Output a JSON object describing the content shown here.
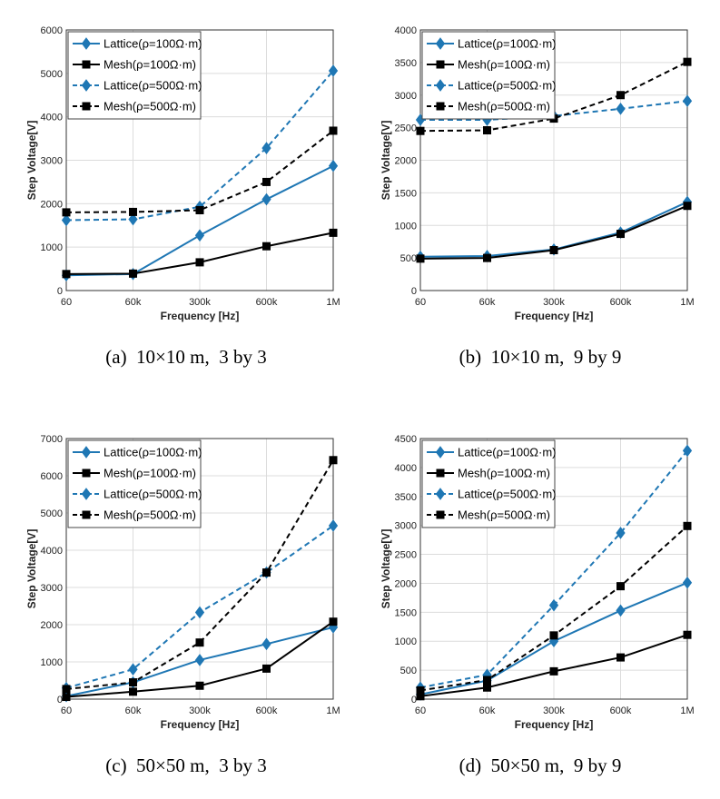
{
  "colors": {
    "lattice": "#1f77b4",
    "mesh": "#000000",
    "grid": "#dcdcdc"
  },
  "chart_data": [
    {
      "type": "line",
      "caption": "(a)  10×10 m,  3 by 3",
      "xlabel": "Frequency [Hz]",
      "ylabel": "Step Voltage[V]",
      "categories": [
        "60",
        "60k",
        "300k",
        "600k",
        "1M"
      ],
      "ylim": [
        0,
        6000
      ],
      "yticks": [
        0,
        1000,
        2000,
        3000,
        4000,
        5000,
        6000
      ],
      "grid": true,
      "legend_position": "top-left",
      "series": [
        {
          "name": "Lattice(ρ=100Ω·m)",
          "style": "solid",
          "marker": "diamond",
          "color": "#1f77b4",
          "values": [
            350,
            380,
            1270,
            2100,
            2870
          ]
        },
        {
          "name": "Mesh(ρ=100Ω·m)",
          "style": "solid",
          "marker": "square",
          "color": "#000000",
          "values": [
            380,
            390,
            650,
            1020,
            1330
          ]
        },
        {
          "name": "Lattice(ρ=500Ω·m)",
          "style": "dashed",
          "marker": "diamond",
          "color": "#1f77b4",
          "values": [
            1620,
            1640,
            1930,
            3280,
            5060
          ]
        },
        {
          "name": "Mesh(ρ=500Ω·m)",
          "style": "dashed",
          "marker": "square",
          "color": "#000000",
          "values": [
            1800,
            1810,
            1850,
            2500,
            3680
          ]
        }
      ]
    },
    {
      "type": "line",
      "caption": "(b)  10×10 m,  9 by 9",
      "xlabel": "Frequency [Hz]",
      "ylabel": "Step Voltage[V]",
      "categories": [
        "60",
        "60k",
        "300k",
        "600k",
        "1M"
      ],
      "ylim": [
        0,
        4000
      ],
      "yticks": [
        0,
        500,
        1000,
        1500,
        2000,
        2500,
        3000,
        3500,
        4000
      ],
      "grid": true,
      "legend_position": "top-left",
      "series": [
        {
          "name": "Lattice(ρ=100Ω·m)",
          "style": "solid",
          "marker": "diamond",
          "color": "#1f77b4",
          "values": [
            520,
            530,
            630,
            890,
            1360
          ]
        },
        {
          "name": "Mesh(ρ=100Ω·m)",
          "style": "solid",
          "marker": "square",
          "color": "#000000",
          "values": [
            490,
            500,
            620,
            870,
            1300
          ]
        },
        {
          "name": "Lattice(ρ=500Ω·m)",
          "style": "dashed",
          "marker": "diamond",
          "color": "#1f77b4",
          "values": [
            2620,
            2620,
            2680,
            2790,
            2910
          ]
        },
        {
          "name": "Mesh(ρ=500Ω·m)",
          "style": "dashed",
          "marker": "square",
          "color": "#000000",
          "values": [
            2450,
            2460,
            2640,
            3000,
            3510
          ]
        }
      ]
    },
    {
      "type": "line",
      "caption": "(c)  50×50 m,  3 by 3",
      "xlabel": "Frequency [Hz]",
      "ylabel": "Step Voltage[V]",
      "categories": [
        "60",
        "60k",
        "300k",
        "600k",
        "1M"
      ],
      "ylim": [
        0,
        7000
      ],
      "yticks": [
        0,
        1000,
        2000,
        3000,
        4000,
        5000,
        6000,
        7000
      ],
      "grid": true,
      "legend_position": "top-left",
      "series": [
        {
          "name": "Lattice(ρ=100Ω·m)",
          "style": "solid",
          "marker": "diamond",
          "color": "#1f77b4",
          "values": [
            80,
            450,
            1050,
            1480,
            1930
          ]
        },
        {
          "name": "Mesh(ρ=100Ω·m)",
          "style": "solid",
          "marker": "square",
          "color": "#000000",
          "values": [
            60,
            200,
            360,
            820,
            2080
          ]
        },
        {
          "name": "Lattice(ρ=500Ω·m)",
          "style": "dashed",
          "marker": "diamond",
          "color": "#1f77b4",
          "values": [
            300,
            800,
            2330,
            3400,
            4660
          ]
        },
        {
          "name": "Mesh(ρ=500Ω·m)",
          "style": "dashed",
          "marker": "square",
          "color": "#000000",
          "values": [
            270,
            450,
            1520,
            3400,
            6420
          ]
        }
      ]
    },
    {
      "type": "line",
      "caption": "(d)  50×50 m,  9 by 9",
      "xlabel": "Frequency [Hz]",
      "ylabel": "Step Voltage[V]",
      "categories": [
        "60",
        "60k",
        "300k",
        "600k",
        "1M"
      ],
      "ylim": [
        0,
        4500
      ],
      "yticks": [
        0,
        500,
        1000,
        1500,
        2000,
        2500,
        3000,
        3500,
        4000,
        4500
      ],
      "grid": true,
      "legend_position": "top-left",
      "series": [
        {
          "name": "Lattice(ρ=100Ω·m)",
          "style": "solid",
          "marker": "diamond",
          "color": "#1f77b4",
          "values": [
            80,
            320,
            1000,
            1530,
            2010
          ]
        },
        {
          "name": "Mesh(ρ=100Ω·m)",
          "style": "solid",
          "marker": "square",
          "color": "#000000",
          "values": [
            50,
            200,
            480,
            720,
            1110
          ]
        },
        {
          "name": "Lattice(ρ=500Ω·m)",
          "style": "dashed",
          "marker": "diamond",
          "color": "#1f77b4",
          "values": [
            200,
            420,
            1620,
            2870,
            4290
          ]
        },
        {
          "name": "Mesh(ρ=500Ω·m)",
          "style": "dashed",
          "marker": "square",
          "color": "#000000",
          "values": [
            150,
            330,
            1100,
            1950,
            2990
          ]
        }
      ]
    }
  ]
}
